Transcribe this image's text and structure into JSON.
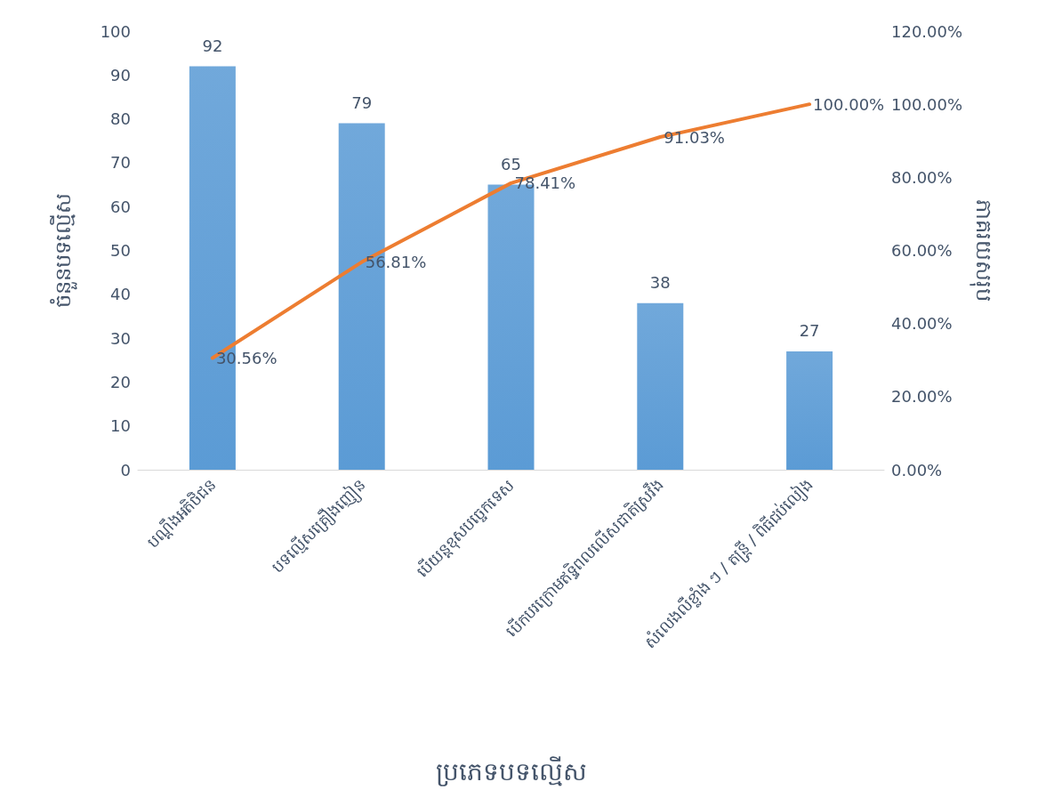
{
  "chart_data": {
    "type": "bar",
    "xlabel": "ប្រភេទបទល្មើស",
    "ylabel": "ចំនួនបទល្មើស",
    "y2label": "ភាគរយសរុប",
    "categories": [
      "បណ្តឹងអតិថិជន",
      "បទល្មើសគ្រឿងញៀន",
      "បើយន្តខុសបច្ចេកទេស",
      "បើកបរក្រោមឥទ្ធិពលលើសជាតិស្រវឹង",
      "សំលេងលឺខ្លាំង ៗ / តន្ត្រី / ពិធីជប់លៀង"
    ],
    "series": [
      {
        "color": "#5b9bd5",
        "values": [
          92,
          79,
          65,
          38,
          27
        ],
        "data_labels": true
      },
      {
        "type": "line",
        "axis": "y2",
        "color": "#ed7d31",
        "values": [
          30.56,
          56.81,
          78.41,
          91.03,
          100.0
        ],
        "value_labels": [
          "30.56%",
          "56.81%",
          "78.41%",
          "91.03%",
          "100.00%"
        ]
      }
    ],
    "ylim": [
      0,
      100
    ],
    "yticks": [
      0,
      10,
      20,
      30,
      40,
      50,
      60,
      70,
      80,
      90,
      100
    ],
    "y2lim": [
      0,
      120
    ],
    "y2ticks": [
      {
        "value": 0,
        "label": "0.00%"
      },
      {
        "value": 20,
        "label": "20.00%"
      },
      {
        "value": 40,
        "label": "40.00%"
      },
      {
        "value": 60,
        "label": "60.00%"
      },
      {
        "value": 80,
        "label": "80.00%"
      },
      {
        "value": 100,
        "label": "100.00%"
      },
      {
        "value": 120,
        "label": "120.00%"
      }
    ],
    "grid": false,
    "marker": "none",
    "line_style": "solid"
  }
}
